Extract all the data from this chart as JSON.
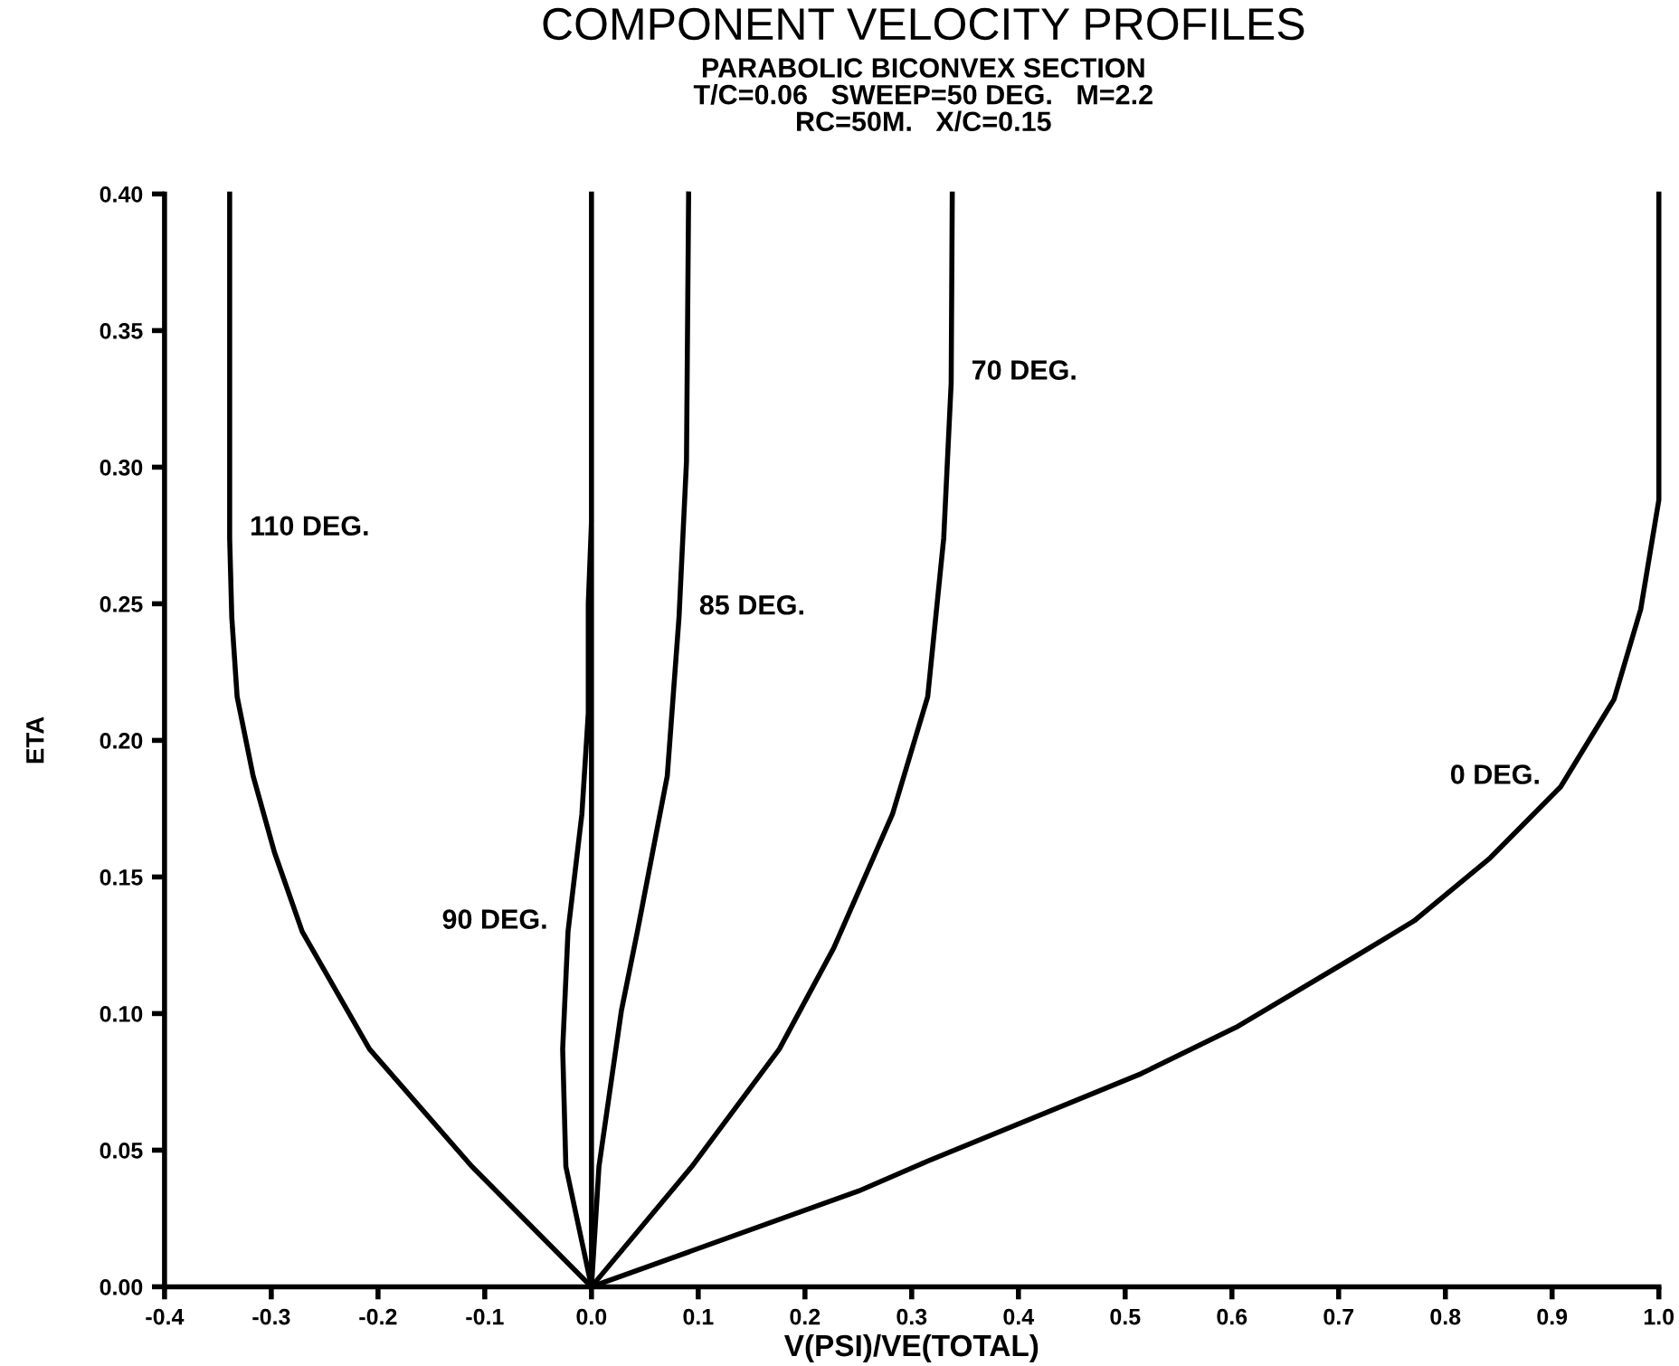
{
  "chart_data": {
    "type": "line",
    "title": "COMPONENT VELOCITY PROFILES",
    "subtitle": "PARABOLIC BICONVEX SECTION\nT/C=0.06   SWEEP=50 DEG.   M=2.2\nRC=50M.   X/C=0.15",
    "xlabel": "V(PSI)/VE(TOTAL)",
    "ylabel": "ETA",
    "series": [
      {
        "color": "#000000",
        "x": [
          0,
          -0.112,
          -0.208,
          -0.271,
          -0.297,
          -0.317,
          -0.332,
          -0.337,
          -0.339,
          -0.339
        ],
        "values": [
          0,
          0.044,
          0.087,
          0.13,
          0.159,
          0.187,
          0.216,
          0.245,
          0.274,
          0.4
        ]
      },
      {
        "color": "#000000",
        "x": [
          0,
          0,
          -0.024,
          -0.027,
          -0.022,
          -0.009,
          -0.003,
          -0.003,
          0
        ],
        "values": [
          0.4,
          0,
          0.044,
          0.087,
          0.13,
          0.173,
          0.21,
          0.25,
          0.28
        ]
      },
      {
        "color": "#000000",
        "x": [
          0,
          0.007,
          0.028,
          0.043,
          0.071,
          0.082,
          0.089,
          0.091
        ],
        "values": [
          0,
          0.044,
          0.101,
          0.13,
          0.187,
          0.245,
          0.302,
          0.4
        ]
      },
      {
        "color": "#000000",
        "x": [
          0,
          0.094,
          0.176,
          0.227,
          0.282,
          0.315,
          0.33,
          0.337,
          0.338
        ],
        "values": [
          0,
          0.044,
          0.087,
          0.124,
          0.173,
          0.216,
          0.274,
          0.331,
          0.4
        ]
      },
      {
        "color": "#000000",
        "x": [
          0,
          0.25,
          0.315,
          0.515,
          0.604,
          0.716,
          0.771,
          0.842,
          0.908,
          0.958,
          0.983,
          1.0,
          1.0
        ],
        "values": [
          0,
          0.035,
          0.046,
          0.078,
          0.095,
          0.121,
          0.134,
          0.157,
          0.183,
          0.215,
          0.248,
          0.288,
          0.4
        ]
      }
    ],
    "annotations": [
      {
        "text": "110 DEG.",
        "x": -0.339,
        "y": 0.274
      },
      {
        "text": "90 DEG.",
        "x": -0.022,
        "y": 0.13
      },
      {
        "text": "85 DEG.",
        "x": 0.082,
        "y": 0.245
      },
      {
        "text": "70 DEG.",
        "x": 0.337,
        "y": 0.331
      },
      {
        "text": "0 DEG.",
        "x": 0.908,
        "y": 0.183
      }
    ],
    "xlim": [
      -0.4,
      1.0
    ],
    "ylim": [
      0,
      0.4
    ],
    "xticks": [
      {
        "value": -0.4,
        "label": "-0.4"
      },
      {
        "value": -0.3,
        "label": "-0.3"
      },
      {
        "value": -0.2,
        "label": "-0.2"
      },
      {
        "value": -0.1,
        "label": "-0.1"
      },
      {
        "value": 0,
        "label": "0.0"
      },
      {
        "value": 0.1,
        "label": "0.1"
      },
      {
        "value": 0.2,
        "label": "0.2"
      },
      {
        "value": 0.3,
        "label": "0.3"
      },
      {
        "value": 0.4,
        "label": "0.4"
      },
      {
        "value": 0.5,
        "label": "0.5"
      },
      {
        "value": 0.6,
        "label": "0.6"
      },
      {
        "value": 0.7,
        "label": "0.7"
      },
      {
        "value": 0.8,
        "label": "0.8"
      },
      {
        "value": 0.9,
        "label": "0.9"
      },
      {
        "value": 1.0,
        "label": "1.0"
      }
    ],
    "yticks": [
      {
        "value": 0,
        "label": "0.00"
      },
      {
        "value": 0.05,
        "label": "0.05"
      },
      {
        "value": 0.1,
        "label": "0.10"
      },
      {
        "value": 0.15,
        "label": "0.15"
      },
      {
        "value": 0.2,
        "label": "0.20"
      },
      {
        "value": 0.25,
        "label": "0.25"
      },
      {
        "value": 0.3,
        "label": "0.30"
      },
      {
        "value": 0.35,
        "label": "0.35"
      },
      {
        "value": 0.4,
        "label": "0.40"
      }
    ],
    "legend": false,
    "marker": "none",
    "line_style": "solid"
  }
}
